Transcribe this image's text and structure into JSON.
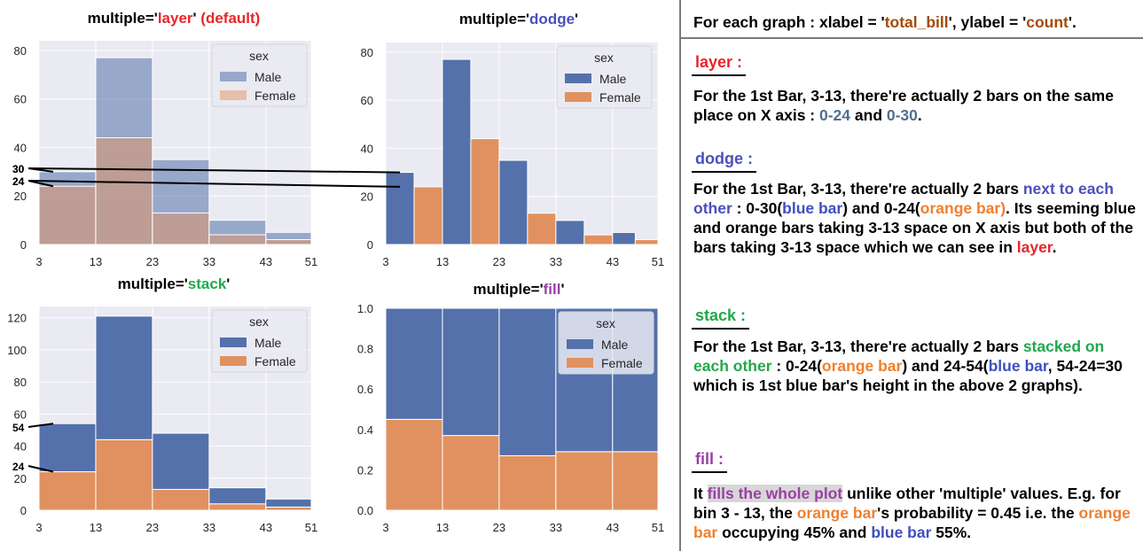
{
  "colors": {
    "male": "#5471ab",
    "female": "#e1915f",
    "grid_bg": "#eaeaf2"
  },
  "chart_data": [
    {
      "type": "bar",
      "multiple": "layer",
      "title_parts": [
        "multiple='",
        "layer",
        "' ",
        "(default)"
      ],
      "bin_edges": [
        3,
        13,
        23,
        33,
        43,
        51
      ],
      "xticks": [
        "3",
        "13",
        "23",
        "33",
        "43",
        "51"
      ],
      "yticks": [
        "0",
        "20",
        "40",
        "60",
        "80"
      ],
      "ylim": [
        0,
        84
      ],
      "legend_title": "sex",
      "legend": [
        "Male",
        "Female"
      ],
      "series": [
        {
          "name": "Male",
          "values": [
            30,
            77,
            35,
            10,
            5
          ]
        },
        {
          "name": "Female",
          "values": [
            24,
            44,
            13,
            4,
            2
          ]
        }
      ],
      "annotations": [
        "30",
        "24"
      ],
      "annotation_values": [
        30,
        24
      ]
    },
    {
      "type": "bar",
      "multiple": "dodge",
      "title_parts": [
        "multiple='",
        "dodge",
        "'"
      ],
      "bin_edges": [
        3,
        13,
        23,
        33,
        43,
        51
      ],
      "xticks": [
        "3",
        "13",
        "23",
        "33",
        "43",
        "51"
      ],
      "yticks": [
        "0",
        "20",
        "40",
        "60",
        "80"
      ],
      "ylim": [
        0,
        84
      ],
      "legend_title": "sex",
      "legend": [
        "Male",
        "Female"
      ],
      "series": [
        {
          "name": "Male",
          "values": [
            30,
            77,
            35,
            10,
            5
          ]
        },
        {
          "name": "Female",
          "values": [
            24,
            44,
            13,
            4,
            2
          ]
        }
      ],
      "annotations": [
        "30",
        "24"
      ],
      "annotation_values": [
        30,
        24
      ]
    },
    {
      "type": "bar",
      "multiple": "stack",
      "title_parts": [
        "multiple='",
        "stack",
        "'"
      ],
      "bin_edges": [
        3,
        13,
        23,
        33,
        43,
        51
      ],
      "xticks": [
        "3",
        "13",
        "23",
        "33",
        "43",
        "51"
      ],
      "yticks": [
        "0",
        "20",
        "40",
        "60",
        "80",
        "100",
        "120"
      ],
      "ylim": [
        0,
        127
      ],
      "legend_title": "sex",
      "legend": [
        "Male",
        "Female"
      ],
      "series": [
        {
          "name": "Male",
          "values": [
            30,
            77,
            35,
            10,
            5
          ]
        },
        {
          "name": "Female",
          "values": [
            24,
            44,
            13,
            4,
            2
          ]
        }
      ],
      "annotations": [
        "54",
        "24"
      ],
      "annotation_values": [
        54,
        24
      ]
    },
    {
      "type": "bar",
      "multiple": "fill",
      "title_parts": [
        "multiple='",
        "fill",
        "'"
      ],
      "bin_edges": [
        3,
        13,
        23,
        33,
        43,
        51
      ],
      "xticks": [
        "3",
        "13",
        "23",
        "33",
        "43",
        "51"
      ],
      "yticks": [
        "0.0",
        "0.2",
        "0.4",
        "0.6",
        "0.8",
        "1.0"
      ],
      "ylim": [
        0,
        1
      ],
      "legend_title": "sex",
      "legend": [
        "Male",
        "Female"
      ],
      "series": [
        {
          "name": "Male",
          "values": [
            0.55,
            0.63,
            0.73,
            0.71,
            0.71
          ]
        },
        {
          "name": "Female",
          "values": [
            0.45,
            0.37,
            0.27,
            0.29,
            0.29
          ]
        }
      ],
      "annotations": [],
      "annotation_values": []
    }
  ],
  "notes": {
    "top": {
      "a": "For each graph : xlabel = '",
      "xlabel": "total_bill",
      "b": "',  ylabel = '",
      "ylabel": "count",
      "c": "'."
    },
    "layer": {
      "heading": "layer :",
      "a": "For the 1st Bar, 3-13, there're actually 2 bars on the same place on X axis : ",
      "v1": "0-24",
      "b": " and ",
      "v2": "0-30",
      "c": "."
    },
    "dodge": {
      "heading": "dodge :",
      "a": "For the 1st Bar, 3-13, there're actually 2 bars ",
      "b": "next to each other",
      "c": " : 0-30(",
      "d": "blue bar",
      "e": ") and 0-24(",
      "f": "orange bar)",
      "g": ". Its seeming blue and orange bars taking 3-13 space on X axis but both of the bars taking 3-13 space which we can see in ",
      "h": "layer",
      "i": "."
    },
    "stack": {
      "heading": "stack :",
      "a": "For the 1st Bar, 3-13, there're actually 2 bars ",
      "b": "stacked on each other",
      "c": " : 0-24(",
      "d": "orange bar",
      "e": ") and 24-54(",
      "f": "blue bar",
      "g": ", 54-24=30 which is 1st blue bar's height in the above 2 graphs)."
    },
    "fill": {
      "heading": "fill :",
      "a": "It ",
      "b": "fills the whole plot",
      "c": " unlike other 'multiple' values. E.g. for bin 3 - 13, the ",
      "d": "orange bar",
      "e": "'s probability = 0.45 i.e. the ",
      "f": "orange bar",
      "g": " occupying 45% and ",
      "h": "blue bar",
      "i": " 55%."
    }
  }
}
